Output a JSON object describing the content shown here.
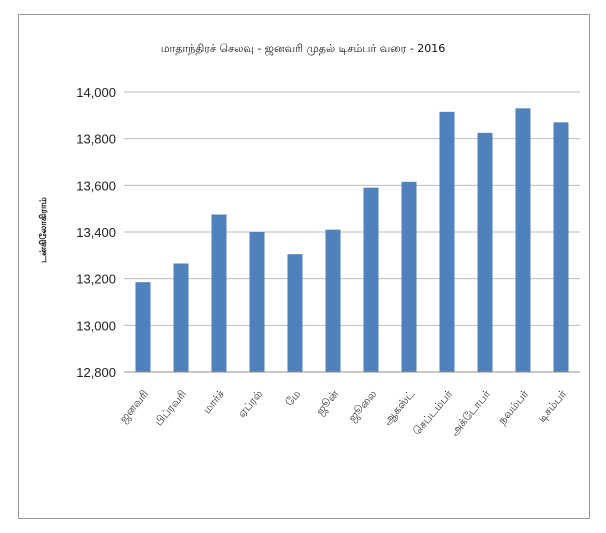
{
  "chart_data": {
    "type": "bar",
    "title": "மாதாந்திரச் செலவு - ஜனவரி முதல் டிசம்பர் வரை - 2016",
    "xlabel": "",
    "ylabel": "டன்கிலோகிராம்",
    "categories": [
      "ஜனவரி",
      "பிப்ரவரி",
      "மார்ச்",
      "ஏப்ரல்",
      "மே",
      "ஜூன்",
      "ஜூலை",
      "ஆகஸ்ட்",
      "செப்டம்பர்",
      "அக்டோபர்",
      "நவம்பர்",
      "டிசம்பர்"
    ],
    "values": [
      13185,
      13265,
      13475,
      13400,
      13305,
      13410,
      13590,
      13615,
      13915,
      13825,
      13930,
      13870
    ],
    "ylim": [
      12800,
      14000
    ],
    "yticks": [
      12800,
      13000,
      13200,
      13400,
      13600,
      13800,
      14000
    ],
    "ytick_labels": [
      "12,800",
      "13,000",
      "13,200",
      "13,400",
      "13,600",
      "13,800",
      "14,000"
    ],
    "grid": true,
    "legend": "none",
    "bar_color": "#4f81bd",
    "grid_color": "#bdbdbd"
  }
}
